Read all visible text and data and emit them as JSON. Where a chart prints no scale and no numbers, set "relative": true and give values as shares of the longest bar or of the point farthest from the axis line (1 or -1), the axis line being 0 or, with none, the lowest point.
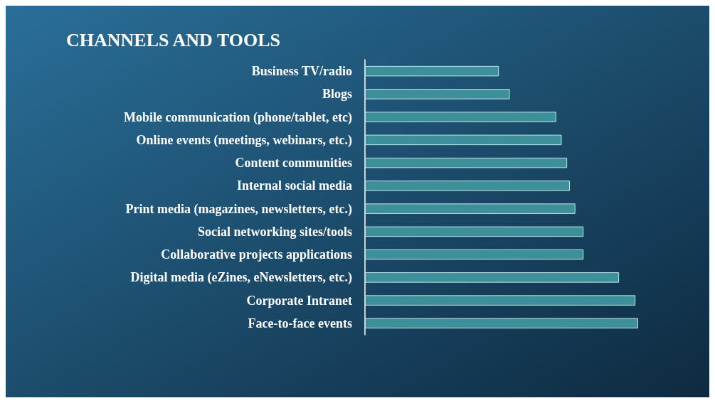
{
  "chart_data": {
    "type": "bar",
    "orientation": "horizontal",
    "relative": true,
    "title": "CHANNELS AND TOOLS",
    "categories": [
      "Business TV/radio",
      "Blogs",
      "Mobile communication (phone/tablet, etc)",
      "Online events (meetings, webinars, etc.)",
      "Content communities",
      "Internal social media",
      "Print media (magazines, newsletters, etc.)",
      "Social networking sites/tools",
      "Collaborative projects applications",
      "Digital media (eZines, eNewsletters, etc.)",
      "Corporate Intranet",
      "Face-to-face events"
    ],
    "values": [
      0.49,
      0.53,
      0.7,
      0.72,
      0.74,
      0.75,
      0.77,
      0.8,
      0.8,
      0.93,
      0.99,
      1
    ],
    "color": "#3d8f9a"
  }
}
